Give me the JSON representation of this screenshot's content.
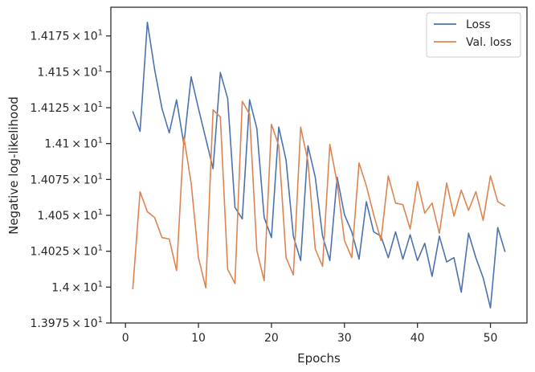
{
  "chart_data": {
    "type": "line",
    "xlabel": "Epochs",
    "ylabel": "Negative log-likelihood",
    "xlim": [
      -2,
      55
    ],
    "ylim": [
      13.975,
      14.195
    ],
    "xticks": [
      0,
      10,
      20,
      30,
      40,
      50
    ],
    "xtick_labels": [
      "0",
      "10",
      "20",
      "30",
      "40",
      "50"
    ],
    "yticks": [
      13.975,
      14.0,
      14.025,
      14.05,
      14.075,
      14.1,
      14.125,
      14.15,
      14.175
    ],
    "ytick_mantissas": [
      "1.3975",
      "1.4",
      "1.4025",
      "1.405",
      "1.4075",
      "1.41",
      "1.4125",
      "1.415",
      "1.4175"
    ],
    "ytick_base": "10",
    "ytick_exponent": "1",
    "grid": false,
    "legend_position": "top-right",
    "colors": {
      "Loss": "#4c72b0",
      "Val. loss": "#dd8452"
    },
    "x": [
      1,
      2,
      3,
      4,
      5,
      6,
      7,
      8,
      9,
      10,
      11,
      12,
      13,
      14,
      15,
      16,
      17,
      18,
      19,
      20,
      21,
      22,
      23,
      24,
      25,
      26,
      27,
      28,
      29,
      30,
      31,
      32,
      33,
      34,
      35,
      36,
      37,
      38,
      39,
      40,
      41,
      42,
      43,
      44,
      45,
      46,
      47,
      48,
      49,
      50,
      51,
      52
    ],
    "series": [
      {
        "name": "Loss",
        "values": [
          14.1225,
          14.1085,
          14.1845,
          14.1515,
          14.1245,
          14.1075,
          14.1305,
          14.0995,
          14.1465,
          14.1245,
          14.1035,
          14.0825,
          14.1495,
          14.1315,
          14.0555,
          14.0475,
          14.1305,
          14.1105,
          14.0485,
          14.0345,
          14.1115,
          14.0885,
          14.0355,
          14.0185,
          14.0985,
          14.0765,
          14.0355,
          14.0185,
          14.0765,
          14.0505,
          14.0385,
          14.0195,
          14.0595,
          14.0385,
          14.0355,
          14.0205,
          14.0385,
          14.0195,
          14.0365,
          14.0185,
          14.0305,
          14.0075,
          14.0355,
          14.0175,
          14.0205,
          13.9965,
          14.0375,
          14.0205,
          14.0065,
          13.9855,
          14.0415,
          14.0245
        ]
      },
      {
        "name": "Val. loss",
        "values": [
          13.9985,
          14.0665,
          14.0525,
          14.0485,
          14.0345,
          14.0335,
          14.0115,
          14.1045,
          14.0725,
          14.0205,
          13.9995,
          14.1235,
          14.1185,
          14.0125,
          14.0025,
          14.1295,
          14.1205,
          14.0255,
          14.0045,
          14.1135,
          14.0985,
          14.0205,
          14.0085,
          14.1115,
          14.0875,
          14.0265,
          14.0145,
          14.0995,
          14.0725,
          14.0325,
          14.0205,
          14.0865,
          14.0705,
          14.0505,
          14.0325,
          14.0775,
          14.0585,
          14.0575,
          14.0405,
          14.0735,
          14.0515,
          14.0585,
          14.0375,
          14.0725,
          14.0495,
          14.0675,
          14.0535,
          14.0665,
          14.0465,
          14.0775,
          14.0595,
          14.0565
        ]
      }
    ]
  }
}
